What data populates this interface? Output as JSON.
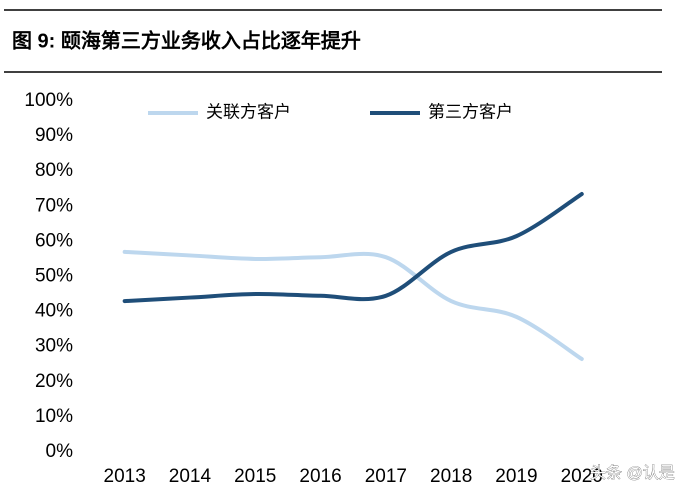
{
  "chart_data": {
    "type": "line",
    "title": "图 9:  颐海第三方业务收入占比逐年提升",
    "categories": [
      "2013",
      "2014",
      "2015",
      "2016",
      "2017",
      "2018",
      "2019",
      "2020"
    ],
    "series": [
      {
        "name": "关联方客户",
        "color": "#bdd7ee",
        "values": [
          57,
          56,
          55,
          55.5,
          55.5,
          43,
          38.5,
          26.5
        ]
      },
      {
        "name": "第三方客户",
        "color": "#1f4e79",
        "values": [
          43,
          44,
          45,
          44.5,
          44.5,
          57,
          61.5,
          73.5
        ]
      }
    ],
    "ylim": [
      0,
      100
    ],
    "yticks": [
      {
        "value": 0,
        "label": "0%"
      },
      {
        "value": 10,
        "label": "10%"
      },
      {
        "value": 20,
        "label": "20%"
      },
      {
        "value": 30,
        "label": "30%"
      },
      {
        "value": 40,
        "label": "40%"
      },
      {
        "value": 50,
        "label": "50%"
      },
      {
        "value": 60,
        "label": "60%"
      },
      {
        "value": 70,
        "label": "70%"
      },
      {
        "value": 80,
        "label": "80%"
      },
      {
        "value": 90,
        "label": "90%"
      },
      {
        "value": 100,
        "label": "100%"
      }
    ],
    "grid": false,
    "legend": "top",
    "watermark": "头条 @认是"
  }
}
